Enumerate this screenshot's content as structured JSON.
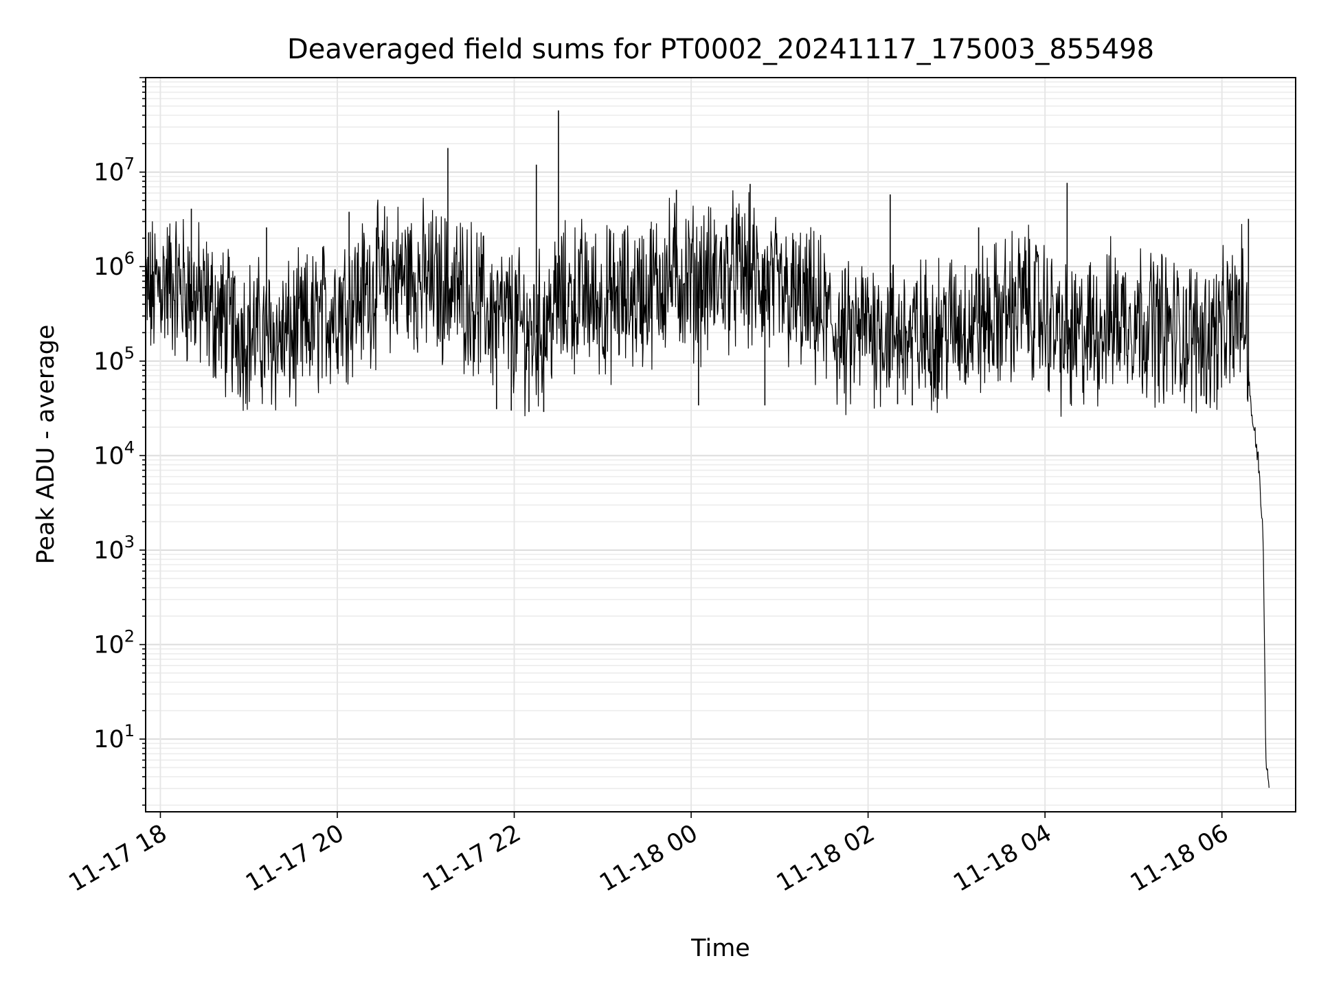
{
  "chart_data": {
    "type": "line",
    "title": "Deaveraged field sums for PT0002_20241117_175003_855498",
    "xlabel": "Time",
    "ylabel": "Peak ADU - average",
    "yscale": "log",
    "grid": true,
    "xlim": [
      "2024-11-17 17:50",
      "2024-11-18 06:50"
    ],
    "ylim": [
      1.7,
      100000000.0
    ],
    "xticks": [
      {
        "t": "2024-11-17 18:00",
        "label": "11-17 18"
      },
      {
        "t": "2024-11-17 20:00",
        "label": "11-17 20"
      },
      {
        "t": "2024-11-17 22:00",
        "label": "11-17 22"
      },
      {
        "t": "2024-11-18 00:00",
        "label": "11-18 00"
      },
      {
        "t": "2024-11-18 02:00",
        "label": "11-18 02"
      },
      {
        "t": "2024-11-18 04:00",
        "label": "11-18 04"
      },
      {
        "t": "2024-11-18 06:00",
        "label": "11-18 06"
      }
    ],
    "yticks": [
      {
        "exp": 1,
        "base": "10",
        "sup": "1"
      },
      {
        "exp": 2,
        "base": "10",
        "sup": "2"
      },
      {
        "exp": 3,
        "base": "10",
        "sup": "3"
      },
      {
        "exp": 4,
        "base": "10",
        "sup": "4"
      },
      {
        "exp": 5,
        "base": "10",
        "sup": "5"
      },
      {
        "exp": 6,
        "base": "10",
        "sup": "6"
      },
      {
        "exp": 7,
        "base": "10",
        "sup": "7"
      }
    ],
    "series": [
      {
        "color": "#000000",
        "points": [
          [
            "2024-11-17 17:50",
            400000
          ],
          [
            "2024-11-17 18:00",
            700000
          ],
          [
            "2024-11-17 18:15",
            600000
          ],
          [
            "2024-11-17 18:30",
            400000
          ],
          [
            "2024-11-17 18:45",
            250000
          ],
          [
            "2024-11-17 19:00",
            200000
          ],
          [
            "2024-11-17 19:15",
            180000
          ],
          [
            "2024-11-17 19:30",
            180000
          ],
          [
            "2024-11-17 19:45",
            250000
          ],
          [
            "2024-11-17 20:00",
            400000
          ],
          [
            "2024-11-17 20:15",
            500000
          ],
          [
            "2024-11-17 20:30",
            700000
          ],
          [
            "2024-11-17 20:45",
            800000
          ],
          [
            "2024-11-17 21:00",
            700000
          ],
          [
            "2024-11-17 21:15",
            600000
          ],
          [
            "2024-11-17 21:30",
            500000
          ],
          [
            "2024-11-17 21:45",
            300000
          ],
          [
            "2024-11-17 22:00",
            250000
          ],
          [
            "2024-11-17 22:15",
            200000
          ],
          [
            "2024-11-17 22:30",
            400000
          ],
          [
            "2024-11-17 22:45",
            500000
          ],
          [
            "2024-11-17 23:00",
            400000
          ],
          [
            "2024-11-17 23:15",
            450000
          ],
          [
            "2024-11-17 23:30",
            550000
          ],
          [
            "2024-11-17 23:45",
            800000
          ],
          [
            "2024-11-18 00:00",
            700000
          ],
          [
            "2024-11-18 00:15",
            700000
          ],
          [
            "2024-11-18 00:30",
            900000
          ],
          [
            "2024-11-18 00:45",
            700000
          ],
          [
            "2024-11-18 01:00",
            500000
          ],
          [
            "2024-11-18 01:15",
            400000
          ],
          [
            "2024-11-18 01:30",
            300000
          ],
          [
            "2024-11-18 01:45",
            150000
          ],
          [
            "2024-11-18 02:00",
            250000
          ],
          [
            "2024-11-18 02:15",
            200000
          ],
          [
            "2024-11-18 02:30",
            180000
          ],
          [
            "2024-11-18 02:45",
            200000
          ],
          [
            "2024-11-18 03:00",
            250000
          ],
          [
            "2024-11-18 03:15",
            250000
          ],
          [
            "2024-11-18 03:30",
            300000
          ],
          [
            "2024-11-18 03:45",
            450000
          ],
          [
            "2024-11-18 04:00",
            300000
          ],
          [
            "2024-11-18 04:15",
            150000
          ],
          [
            "2024-11-18 04:30",
            200000
          ],
          [
            "2024-11-18 04:45",
            280000
          ],
          [
            "2024-11-18 05:00",
            300000
          ],
          [
            "2024-11-18 05:15",
            250000
          ],
          [
            "2024-11-18 05:30",
            200000
          ],
          [
            "2024-11-18 05:45",
            180000
          ],
          [
            "2024-11-18 06:00",
            200000
          ],
          [
            "2024-11-18 06:15",
            400000
          ],
          [
            "2024-11-18 06:20",
            30000
          ],
          [
            "2024-11-18 06:25",
            8000
          ],
          [
            "2024-11-18 06:28",
            1500
          ],
          [
            "2024-11-18 06:30",
            4
          ],
          [
            "2024-11-18 06:32",
            4
          ]
        ],
        "spikes": [
          [
            "2024-11-17 17:52",
            2300000
          ],
          [
            "2024-11-17 18:21",
            4100000
          ],
          [
            "2024-11-17 19:12",
            2600000
          ],
          [
            "2024-11-17 20:08",
            3800000
          ],
          [
            "2024-11-17 21:15",
            18000000
          ],
          [
            "2024-11-17 22:15",
            12000000
          ],
          [
            "2024-11-17 22:30",
            45000000
          ],
          [
            "2024-11-17 23:50",
            6500000
          ],
          [
            "2024-11-18 00:40",
            7500000
          ],
          [
            "2024-11-18 02:15",
            5800000
          ],
          [
            "2024-11-18 03:15",
            2600000
          ],
          [
            "2024-11-18 04:15",
            7700000
          ],
          [
            "2024-11-18 06:18",
            3200000
          ]
        ],
        "dips": [
          [
            "2024-11-17 21:48",
            31000
          ],
          [
            "2024-11-17 21:58",
            30000
          ],
          [
            "2024-11-17 22:10",
            29000
          ],
          [
            "2024-11-17 22:20",
            29000
          ],
          [
            "2024-11-18 00:05",
            34000
          ],
          [
            "2024-11-18 00:50",
            34000
          ],
          [
            "2024-11-18 02:20",
            35000
          ],
          [
            "2024-11-18 02:30",
            34000
          ]
        ]
      }
    ]
  }
}
